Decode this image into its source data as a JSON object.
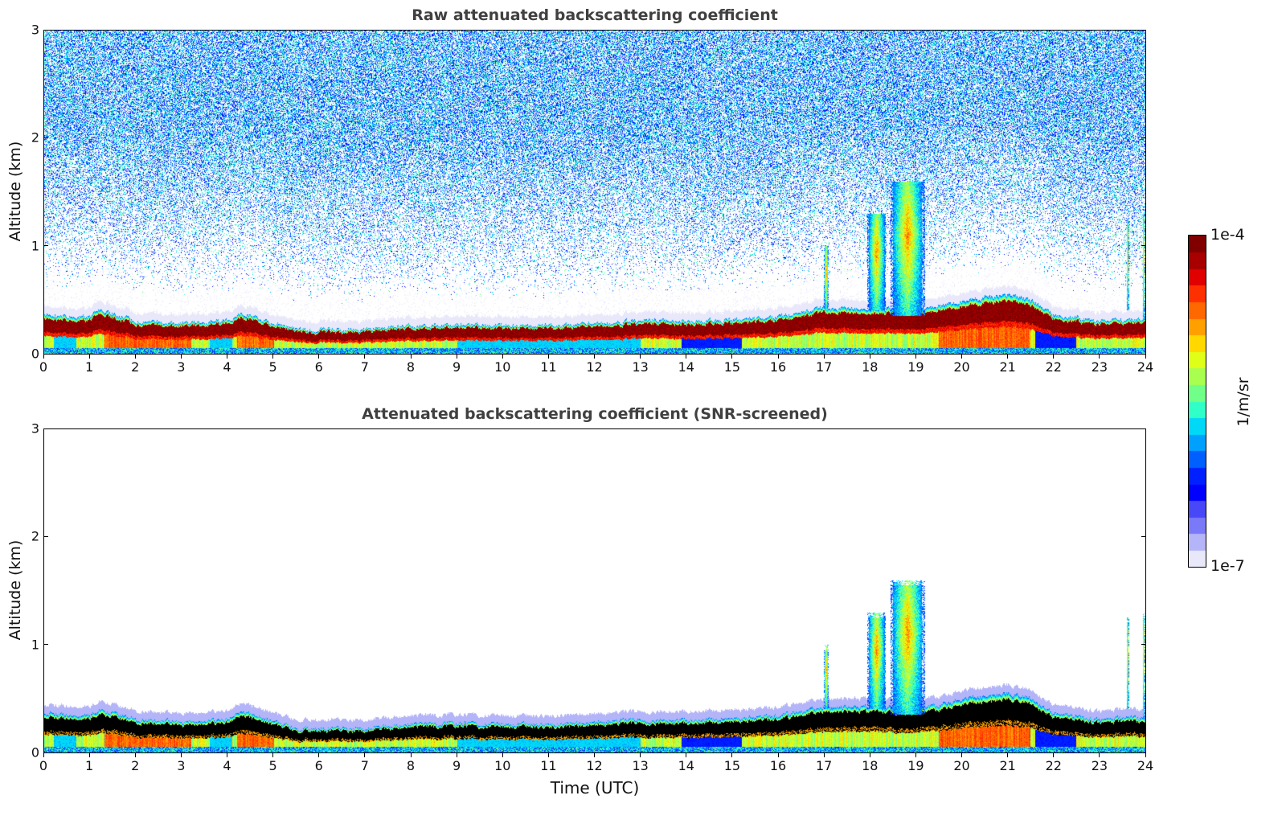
{
  "chart_data": [
    {
      "type": "heatmap",
      "title": "Raw attenuated backscattering coefficient",
      "xlabel": "",
      "ylabel": "Altitude (km)",
      "xlim": [
        0,
        24
      ],
      "ylim": [
        0,
        3
      ],
      "xticks": [
        "0",
        "1",
        "2",
        "3",
        "4",
        "5",
        "6",
        "7",
        "8",
        "9",
        "10",
        "11",
        "12",
        "13",
        "14",
        "15",
        "16",
        "17",
        "18",
        "19",
        "20",
        "21",
        "22",
        "23",
        "24"
      ],
      "yticks": [
        "0",
        "1",
        "2",
        "3"
      ],
      "screened": false
    },
    {
      "type": "heatmap",
      "title": "Attenuated backscattering coefficient (SNR-screened)",
      "xlabel": "Time (UTC)",
      "ylabel": "Altitude (km)",
      "xlim": [
        0,
        24
      ],
      "ylim": [
        0,
        3
      ],
      "xticks": [
        "0",
        "1",
        "2",
        "3",
        "4",
        "5",
        "6",
        "7",
        "8",
        "9",
        "10",
        "11",
        "12",
        "13",
        "14",
        "15",
        "16",
        "17",
        "18",
        "19",
        "20",
        "21",
        "22",
        "23",
        "24"
      ],
      "yticks": [
        "0",
        "1",
        "2",
        "3"
      ],
      "screened": true
    }
  ],
  "colorbar": {
    "label": "1/m/sr",
    "max_label": "1e-4",
    "min_label": "1e-7",
    "scale": "log",
    "range": [
      1e-07,
      0.0001
    ],
    "colormap": "jet-with-white-low",
    "colors": [
      "#e8e8fa",
      "#b4b4f8",
      "#7a7af8",
      "#4848f8",
      "#0000ff",
      "#0020ff",
      "#0060ff",
      "#00a0ff",
      "#00d8f8",
      "#30ffc8",
      "#70ff88",
      "#a8ff50",
      "#e0ff18",
      "#ffd800",
      "#ffa000",
      "#ff6800",
      "#ff3000",
      "#e00000",
      "#a80000",
      "#800000"
    ]
  },
  "boundary_layer": {
    "description_hours": [
      0,
      1,
      1.2,
      2,
      3,
      4,
      4.3,
      5,
      5.6,
      6,
      7,
      8,
      9,
      10,
      11,
      12,
      13,
      14,
      15,
      16,
      17,
      18,
      19,
      20,
      21,
      21.5,
      22,
      23,
      24
    ],
    "top_km": [
      0.36,
      0.34,
      0.4,
      0.3,
      0.28,
      0.3,
      0.38,
      0.28,
      0.22,
      0.22,
      0.22,
      0.26,
      0.27,
      0.26,
      0.26,
      0.28,
      0.3,
      0.3,
      0.31,
      0.34,
      0.42,
      0.42,
      0.4,
      0.48,
      0.55,
      0.5,
      0.36,
      0.3,
      0.32
    ]
  },
  "clouds": [
    {
      "t0": 17.0,
      "t1": 17.1,
      "z0": 0.4,
      "z1": 1.0
    },
    {
      "t0": 17.95,
      "t1": 18.35,
      "z0": 0.4,
      "z1": 1.3
    },
    {
      "t0": 18.45,
      "t1": 19.2,
      "z0": 0.35,
      "z1": 1.6
    },
    {
      "t0": 23.6,
      "t1": 23.65,
      "z0": 0.4,
      "z1": 1.25
    },
    {
      "t0": 23.95,
      "t1": 24.0,
      "z0": 0.3,
      "z1": 1.3
    }
  ]
}
